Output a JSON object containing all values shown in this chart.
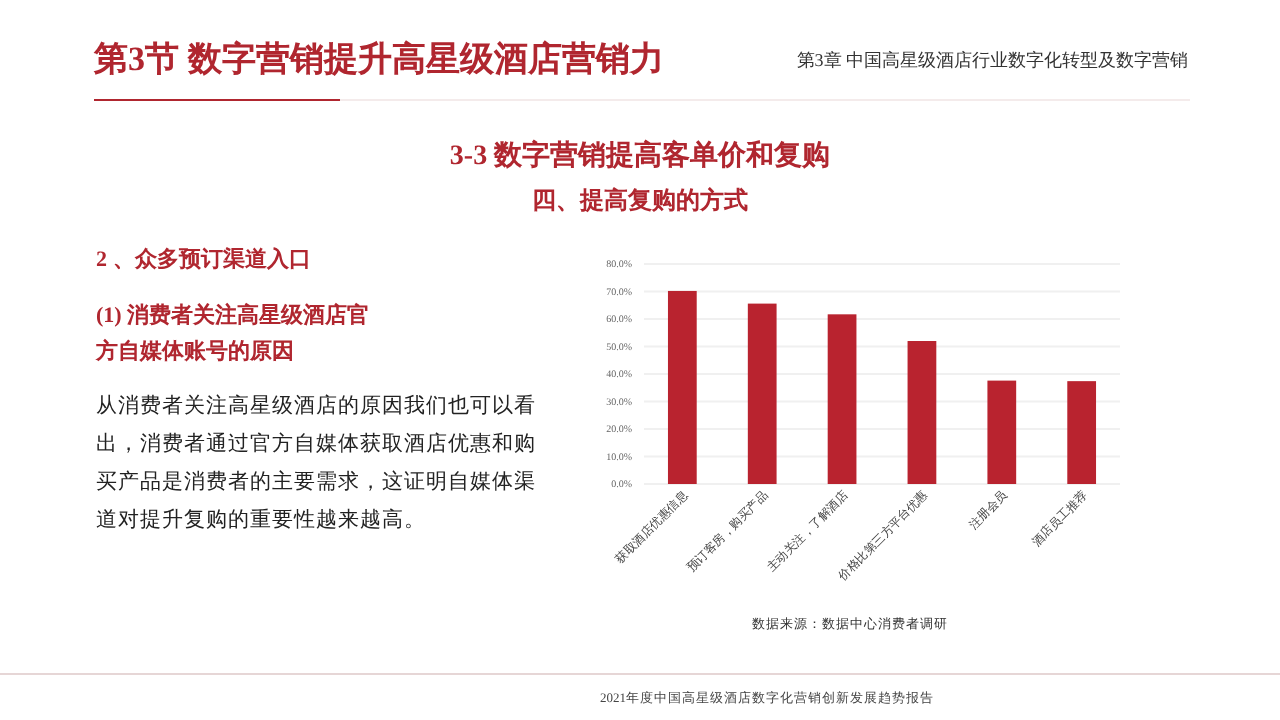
{
  "chart_data": {
    "type": "bar",
    "title": "第3节 数字营销提升高星级酒店营销力",
    "subtitle": "3-3   数字营销提高客单价和复购",
    "annotations": [
      "第3章  中国高星级酒店行业数字化转型及数字营销",
      "四、提高复购的方式",
      "2 、众多预订渠道入口",
      "(1) 消费者关注高星级酒店官方自媒体账号的原因",
      "从消费者关注高星级酒店的原因我们也可以看出，消费者通过官方自媒体获取酒店优惠和购买产品是消费者的主要需求，这证明自媒体渠道对提升复购的重要性越来越高。",
      "数据来源：数据中心消费者调研",
      "2021年度中国高星级酒店数字化营销创新发展趋势报告"
    ],
    "categories": [
      "获取酒店优惠信息",
      "预订客房，购买产品",
      "主动关注，了解酒店",
      "价格比第三方平台优惠",
      "注册会员",
      "酒店员工推荐"
    ],
    "values": [
      70.2,
      65.6,
      61.7,
      52,
      37.6,
      37.4
    ],
    "color": "#b9232f",
    "ylim": [
      0,
      80
    ],
    "yticks": [
      {
        "value": 0,
        "label": "0.0%"
      },
      {
        "value": 10,
        "label": "10.0%"
      },
      {
        "value": 20,
        "label": "20.0%"
      },
      {
        "value": 30,
        "label": "30.0%"
      },
      {
        "value": 40,
        "label": "40.0%"
      },
      {
        "value": 50,
        "label": "50.0%"
      },
      {
        "value": 60,
        "label": "60.0%"
      },
      {
        "value": 70,
        "label": "70.0%"
      },
      {
        "value": 80,
        "label": "80.0%"
      }
    ],
    "grid": "y"
  }
}
